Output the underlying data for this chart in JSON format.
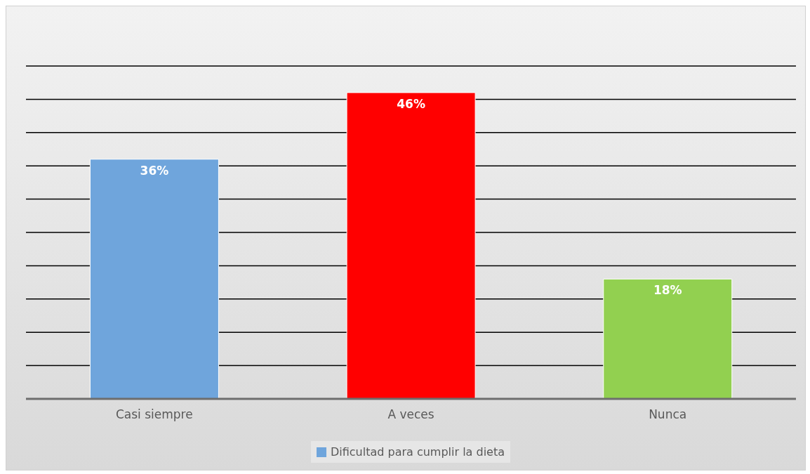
{
  "chart_data": {
    "type": "bar",
    "categories": [
      "Casi siempre",
      "A veces",
      "Nunca"
    ],
    "series": [
      {
        "name": "Dificultad para cumplir la dieta",
        "colors": [
          "#6fa5dc",
          "#ff0000",
          "#92d050"
        ],
        "values": [
          36,
          46,
          18
        ],
        "value_labels": [
          "36%",
          "46%",
          "18%"
        ]
      }
    ],
    "tick_labels": "x",
    "grid": "y",
    "legend": "bottom"
  }
}
